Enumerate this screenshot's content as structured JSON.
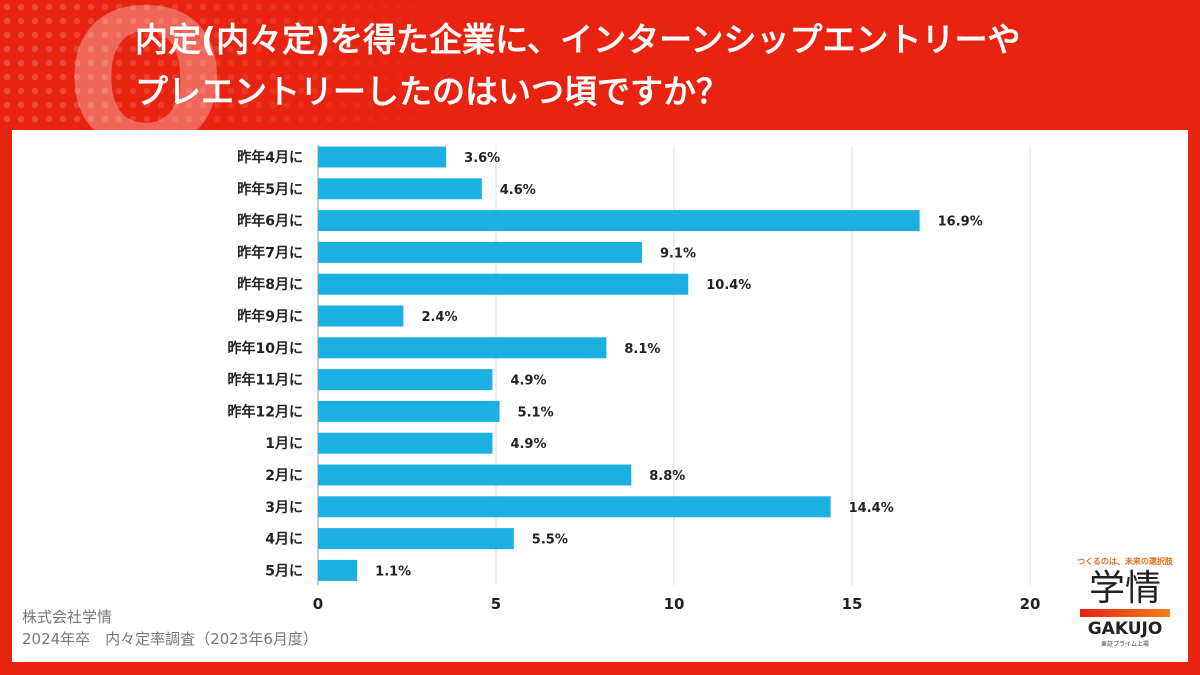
{
  "header": {
    "q_mark": "Q",
    "title_line1": "内定(内々定)を得た企業に、インターンシップエントリーや",
    "title_line2": "プレエントリーしたのはいつ頃ですか？"
  },
  "chart_data": {
    "type": "bar",
    "orientation": "horizontal",
    "title": "内定(内々定)を得た企業に、インターンシップエントリーやプレエントリーしたのはいつ頃ですか？",
    "categories": [
      "昨年4月に",
      "昨年5月に",
      "昨年6月に",
      "昨年7月に",
      "昨年8月に",
      "昨年9月に",
      "昨年10月に",
      "昨年11月に",
      "昨年12月に",
      "1月に",
      "2月に",
      "3月に",
      "4月に",
      "5月に"
    ],
    "values": [
      3.6,
      4.6,
      16.9,
      9.1,
      10.4,
      2.4,
      8.1,
      4.9,
      5.1,
      4.9,
      8.8,
      14.4,
      5.5,
      1.1
    ],
    "labels": [
      "3.6%",
      "4.6%",
      "16.9%",
      "9.1%",
      "10.4%",
      "2.4%",
      "8.1%",
      "4.9%",
      "5.1%",
      "4.9%",
      "8.8%",
      "14.4%",
      "5.5%",
      "1.1%"
    ],
    "xlim": [
      0,
      20
    ],
    "xticks": [
      0,
      5,
      10,
      15,
      20
    ],
    "grid": true,
    "bar_color": "#1cb0e0",
    "xlabel": "",
    "ylabel": ""
  },
  "footer": {
    "line1": "株式会社学情",
    "line2": "2024年卒　内々定率調査（2023年6月度）"
  },
  "logo": {
    "tagline": "つくるのは、未来の選択肢",
    "name_jp": "学情",
    "name_en": "GAKUJO",
    "sub": "東証プライム上場"
  }
}
